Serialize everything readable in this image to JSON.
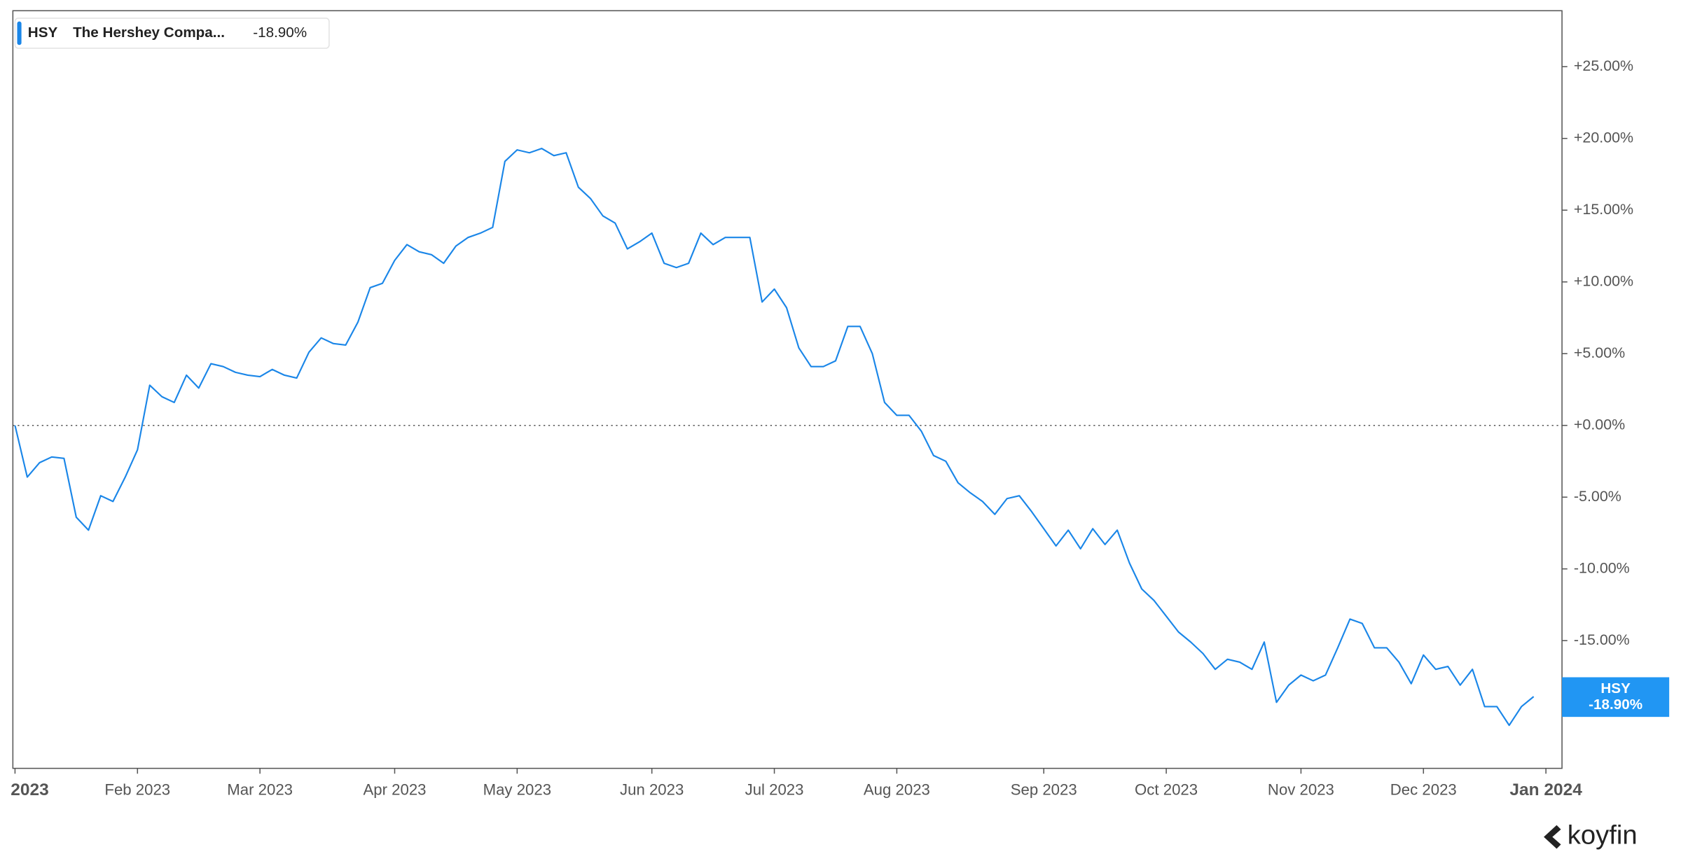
{
  "chart_data": {
    "type": "line",
    "legend": {
      "ticker": "HSY",
      "name": "The Hershey Compa...",
      "change": "-18.90%"
    },
    "badge": {
      "ticker": "HSY",
      "change": "-18.90%"
    },
    "watermark": "koyfin",
    "categories": [
      "2023",
      null,
      null,
      null,
      null,
      null,
      null,
      null,
      null,
      null,
      "Feb 2023",
      null,
      null,
      null,
      null,
      null,
      null,
      null,
      null,
      null,
      "Mar 2023",
      null,
      null,
      null,
      null,
      null,
      null,
      null,
      null,
      null,
      null,
      "Apr 2023",
      null,
      null,
      null,
      null,
      null,
      null,
      null,
      null,
      null,
      "May 2023",
      null,
      null,
      null,
      null,
      null,
      null,
      null,
      null,
      null,
      null,
      "Jun 2023",
      null,
      null,
      null,
      null,
      null,
      null,
      null,
      null,
      null,
      "Jul 2023",
      null,
      null,
      null,
      null,
      null,
      null,
      null,
      null,
      null,
      "Aug 2023",
      null,
      null,
      null,
      null,
      null,
      null,
      null,
      null,
      null,
      null,
      null,
      "Sep 2023",
      null,
      null,
      null,
      null,
      null,
      null,
      null,
      null,
      null,
      "Oct 2023",
      null,
      null,
      null,
      null,
      null,
      null,
      null,
      null,
      null,
      null,
      "Nov 2023",
      null,
      null,
      null,
      null,
      null,
      null,
      null,
      null,
      null,
      "Dec 2023",
      null,
      null,
      null,
      null,
      null,
      null,
      null,
      null,
      null,
      "Jan 2024"
    ],
    "series": [
      {
        "name": "HSY",
        "color": "#1a86e8",
        "values": [
          0,
          -3.6,
          -2.6,
          -2.2,
          -2.3,
          -6.4,
          -7.3,
          -4.9,
          -5.3,
          -3.6,
          -1.7,
          2.8,
          2.0,
          1.6,
          3.5,
          2.6,
          4.3,
          4.1,
          3.7,
          3.5,
          3.4,
          3.9,
          3.5,
          3.3,
          5.1,
          6.1,
          5.7,
          5.6,
          7.2,
          9.6,
          9.9,
          11.5,
          12.6,
          12.1,
          11.9,
          11.3,
          12.5,
          13.1,
          13.4,
          13.8,
          18.4,
          19.2,
          19.0,
          19.3,
          18.8,
          19.0,
          16.6,
          15.8,
          14.6,
          14.1,
          12.3,
          12.8,
          13.4,
          11.3,
          11.0,
          11.3,
          13.4,
          12.6,
          13.1,
          13.1,
          13.1,
          8.6,
          9.5,
          8.2,
          5.4,
          4.1,
          4.1,
          4.5,
          6.9,
          6.9,
          5.0,
          1.6,
          0.7,
          0.7,
          -0.4,
          -2.1,
          -2.5,
          -4.0,
          -4.7,
          -5.3,
          -6.2,
          -5.1,
          -4.9,
          -6.0,
          -7.2,
          -8.4,
          -7.3,
          -8.6,
          -7.2,
          -8.3,
          -7.3,
          -9.6,
          -11.4,
          -12.2,
          -13.3,
          -14.4,
          -15.1,
          -15.9,
          -17.0,
          -16.3,
          -16.5,
          -17.0,
          -15.1,
          -19.3,
          -18.1,
          -17.4,
          -17.8,
          -17.4,
          -15.5,
          -13.5,
          -13.8,
          -15.5,
          -15.5,
          -16.5,
          -18.0,
          -16.0,
          -17.0,
          -16.8,
          -18.1,
          -17.0,
          -19.6,
          -19.6,
          -20.9,
          -19.6,
          -18.9,
          null
        ]
      }
    ],
    "ylim": [
      -23.9,
      28.9
    ],
    "yticks": [
      {
        "value": -15,
        "label": "-15.00%"
      },
      {
        "value": -10,
        "label": "-10.00%"
      },
      {
        "value": -5,
        "label": "-5.00%"
      },
      {
        "value": 0,
        "label": "+0.00%"
      },
      {
        "value": 5,
        "label": "+5.00%"
      },
      {
        "value": 10,
        "label": "+10.00%"
      },
      {
        "value": 15,
        "label": "+15.00%"
      },
      {
        "value": 20,
        "label": "+20.00%"
      },
      {
        "value": 25,
        "label": "+25.00%"
      }
    ]
  }
}
